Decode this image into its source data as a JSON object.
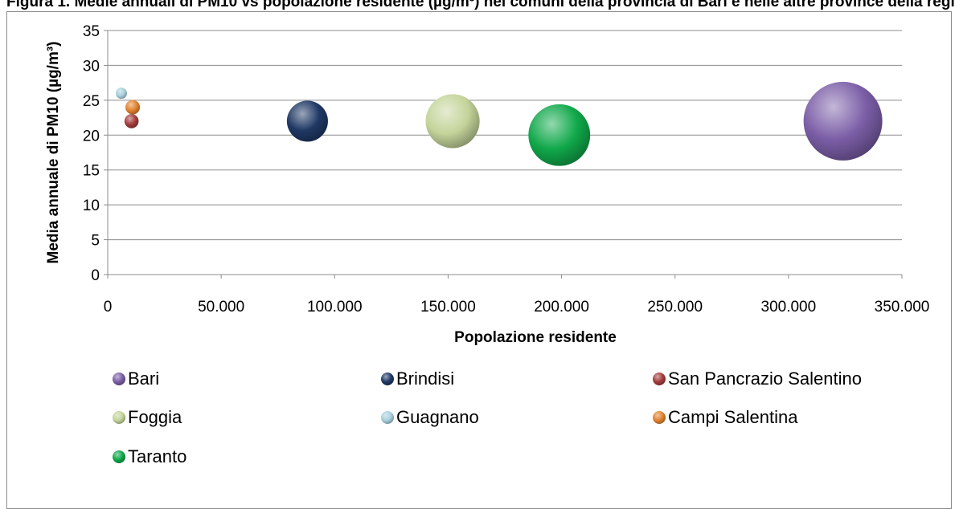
{
  "caption": "Figura 1. Medie annuali di PM10 vs popolazione residente (µg/m³) nei comuni della provincia di Bari e nelle altre province della regione",
  "chart_data": {
    "type": "bubble",
    "xlabel": "Popolazione residente",
    "ylabel": "Media annuale di PM10 (µg/m³)",
    "xlim": [
      0,
      350000
    ],
    "ylim": [
      0,
      35
    ],
    "x_ticks": [
      0,
      50000,
      100000,
      150000,
      200000,
      250000,
      300000,
      350000
    ],
    "x_tick_labels": [
      "0",
      "50.000",
      "100.000",
      "150.000",
      "200.000",
      "250.000",
      "300.000",
      "350.000"
    ],
    "y_ticks": [
      0,
      5,
      10,
      15,
      20,
      25,
      30,
      35
    ],
    "y_tick_labels": [
      "0",
      "5",
      "10",
      "15",
      "20",
      "25",
      "30",
      "35"
    ],
    "grid": "horizontal",
    "legend_position": "bottom",
    "series": [
      {
        "name": "Bari",
        "x": 324000,
        "y": 22,
        "size": 324000,
        "color": "#7b5ea7"
      },
      {
        "name": "Brindisi",
        "x": 88000,
        "y": 22,
        "size": 88000,
        "color": "#1f3864"
      },
      {
        "name": "San Pancrazio Salentino",
        "x": 10500,
        "y": 22,
        "size": 10500,
        "color": "#a33b3b"
      },
      {
        "name": "Foggia",
        "x": 152000,
        "y": 22,
        "size": 152000,
        "color": "#c4d49a"
      },
      {
        "name": "Guagnano",
        "x": 6000,
        "y": 26,
        "size": 6000,
        "color": "#a9cfdc"
      },
      {
        "name": "Campi Salentina",
        "x": 11000,
        "y": 24,
        "size": 11000,
        "color": "#e0822f"
      },
      {
        "name": "Taranto",
        "x": 199000,
        "y": 20,
        "size": 199000,
        "color": "#10a84a"
      }
    ]
  }
}
